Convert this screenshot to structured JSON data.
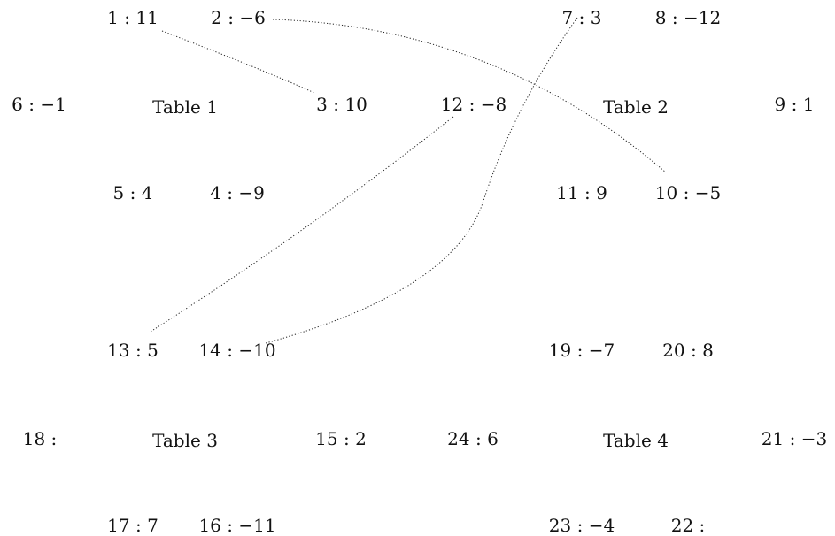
{
  "tables": [
    {
      "title": "Table 1"
    },
    {
      "title": "Table 2"
    },
    {
      "title": "Table 3"
    },
    {
      "title": "Table 4"
    }
  ],
  "seats": [
    {
      "id": "s1",
      "text": "1 : 11"
    },
    {
      "id": "s2",
      "text": "2 : −6"
    },
    {
      "id": "s3",
      "text": "3 : 10"
    },
    {
      "id": "s4",
      "text": "4 : −9"
    },
    {
      "id": "s5",
      "text": "5 : 4"
    },
    {
      "id": "s6",
      "text": "6 : −1"
    },
    {
      "id": "s7",
      "text": "7 : 3"
    },
    {
      "id": "s8",
      "text": "8 : −12"
    },
    {
      "id": "s9",
      "text": "9 : 1"
    },
    {
      "id": "s10",
      "text": "10 : −5"
    },
    {
      "id": "s11",
      "text": "11 : 9"
    },
    {
      "id": "s12",
      "text": "12 : −8"
    },
    {
      "id": "s13",
      "text": "13 : 5"
    },
    {
      "id": "s14",
      "text": "14 : −10"
    },
    {
      "id": "s15",
      "text": "15 : 2"
    },
    {
      "id": "s16",
      "text": "16 : −11"
    },
    {
      "id": "s17",
      "text": "17 : 7"
    },
    {
      "id": "s18",
      "text": "18 :"
    },
    {
      "id": "s19",
      "text": "19 : −7"
    },
    {
      "id": "s20",
      "text": "20 : 8"
    },
    {
      "id": "s21",
      "text": "21 : −3"
    },
    {
      "id": "s22",
      "text": "22 :"
    },
    {
      "id": "s23",
      "text": "23 : −4"
    },
    {
      "id": "s24",
      "text": "24 : 6"
    }
  ],
  "connections": [
    {
      "from": "1",
      "to": "3"
    },
    {
      "from": "2",
      "to": "10"
    },
    {
      "from": "7",
      "to": "14"
    },
    {
      "from": "12",
      "to": "13"
    }
  ]
}
